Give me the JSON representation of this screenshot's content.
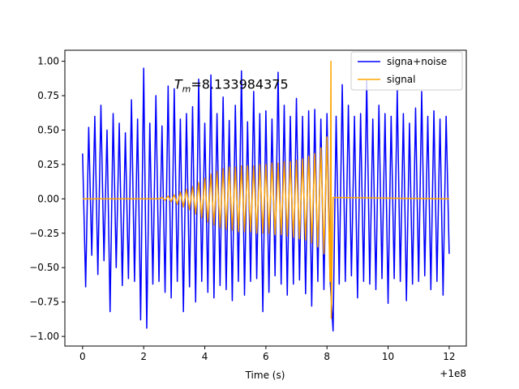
{
  "chart_data": {
    "type": "line",
    "xlabel": "Time (s)",
    "x_offset_label": "+1e8",
    "annotation": {
      "symbol": "T",
      "subscript": "m",
      "text": "=8.133984375",
      "x": 3.0,
      "y": 0.8
    },
    "legend": "upper right",
    "xlim": [
      -0.58,
      12.56
    ],
    "ylim": [
      -1.07,
      1.08
    ],
    "xticks": [
      0,
      2,
      4,
      6,
      8,
      10,
      12
    ],
    "yticks": [
      {
        "value": -1.0,
        "label": "−1.00"
      },
      {
        "value": -0.75,
        "label": "−0.75"
      },
      {
        "value": -0.5,
        "label": "−0.50"
      },
      {
        "value": -0.25,
        "label": "−0.25"
      },
      {
        "value": 0,
        "label": "0.00"
      },
      {
        "value": 0.25,
        "label": "0.25"
      },
      {
        "value": 0.5,
        "label": "0.50"
      },
      {
        "value": 0.75,
        "label": "0.75"
      },
      {
        "value": 1.0,
        "label": "1.00"
      }
    ],
    "series": [
      {
        "name": "signa+noise",
        "color": "#0000ff",
        "x": [
          0,
          0.1,
          0.2,
          0.3,
          0.4,
          0.5,
          0.6,
          0.7,
          0.8,
          0.9,
          1,
          1.1,
          1.2,
          1.3,
          1.4,
          1.5,
          1.6,
          1.7,
          1.8,
          1.9,
          2,
          2.1,
          2.2,
          2.3,
          2.4,
          2.5,
          2.6,
          2.7,
          2.8,
          2.9,
          3,
          3.1,
          3.2,
          3.3,
          3.4,
          3.5,
          3.6,
          3.7,
          3.8,
          3.9,
          4,
          4.1,
          4.2,
          4.3,
          4.4,
          4.5,
          4.6,
          4.7,
          4.8,
          4.9,
          5,
          5.1,
          5.2,
          5.3,
          5.4,
          5.5,
          5.6,
          5.7,
          5.8,
          5.9,
          6,
          6.1,
          6.2,
          6.3,
          6.4,
          6.5,
          6.6,
          6.7,
          6.8,
          6.9,
          7,
          7.1,
          7.2,
          7.3,
          7.4,
          7.5,
          7.6,
          7.7,
          7.8,
          7.9,
          8,
          8.1,
          8.2,
          8.3,
          8.4,
          8.5,
          8.6,
          8.7,
          8.8,
          8.9,
          9,
          9.1,
          9.2,
          9.3,
          9.4,
          9.5,
          9.6,
          9.7,
          9.8,
          9.9,
          10,
          10.1,
          10.2,
          10.3,
          10.4,
          10.5,
          10.6,
          10.7,
          10.8,
          10.9,
          11,
          11.1,
          11.2,
          11.3,
          11.4,
          11.5,
          11.6,
          11.7,
          11.8,
          11.9,
          12
        ],
        "values": [
          0.33,
          -0.64,
          0.52,
          -0.41,
          0.6,
          -0.55,
          0.68,
          -0.45,
          0.5,
          -0.82,
          0.62,
          -0.5,
          0.55,
          -0.63,
          0.48,
          -0.58,
          0.72,
          -0.6,
          0.58,
          -0.88,
          0.95,
          -0.94,
          0.55,
          -0.62,
          0.75,
          -0.6,
          0.53,
          -0.68,
          0.82,
          -0.72,
          0.8,
          -0.6,
          0.58,
          -0.82,
          0.62,
          -0.64,
          0.67,
          -0.75,
          0.87,
          -0.6,
          0.55,
          -0.68,
          0.9,
          -0.72,
          0.62,
          -0.63,
          0.74,
          -0.66,
          0.57,
          -0.74,
          0.68,
          -0.6,
          0.93,
          -0.7,
          0.56,
          -0.6,
          0.78,
          -0.58,
          0.62,
          -0.82,
          0.64,
          -0.68,
          0.58,
          -0.56,
          0.92,
          -0.62,
          0.68,
          -0.7,
          0.6,
          -0.62,
          0.73,
          -0.59,
          0.6,
          -0.69,
          0.64,
          -0.78,
          0.65,
          -0.6,
          0.58,
          -0.66,
          0.62,
          -0.58,
          -0.96,
          0.6,
          -0.62,
          0.83,
          -0.6,
          0.68,
          -0.56,
          0.6,
          -0.72,
          0.62,
          -0.6,
          0.86,
          -0.62,
          0.58,
          -0.66,
          0.68,
          -0.58,
          0.62,
          -0.76,
          0.6,
          -0.58,
          0.79,
          -0.6,
          0.62,
          -0.74,
          0.55,
          -0.62,
          0.66,
          -0.6,
          0.78,
          -0.56,
          0.6,
          -0.66,
          0.64,
          -0.6,
          0.58,
          -0.7,
          0.6,
          -0.4
        ]
      },
      {
        "name": "signal",
        "color": "#ffa500",
        "x": [
          0,
          2,
          2.5,
          2.6,
          2.7,
          2.8,
          2.9,
          3,
          3.1,
          3.2,
          3.3,
          3.4,
          3.5,
          3.6,
          3.7,
          3.8,
          3.9,
          4,
          4.1,
          4.2,
          4.3,
          4.4,
          4.5,
          4.6,
          4.7,
          4.8,
          4.9,
          5,
          5.1,
          5.2,
          5.3,
          5.4,
          5.5,
          5.6,
          5.7,
          5.8,
          5.9,
          6,
          6.1,
          6.2,
          6.3,
          6.4,
          6.5,
          6.6,
          6.7,
          6.8,
          6.9,
          7,
          7.1,
          7.2,
          7.3,
          7.4,
          7.5,
          7.6,
          7.7,
          7.8,
          7.9,
          8,
          8.1,
          8.13,
          8.14,
          8.2,
          12
        ],
        "values": [
          0,
          0,
          0,
          0.01,
          -0.01,
          0.02,
          -0.02,
          0.03,
          -0.04,
          0.05,
          -0.06,
          0.07,
          -0.08,
          0.09,
          -0.11,
          0.12,
          -0.14,
          0.15,
          -0.17,
          0.18,
          -0.19,
          0.2,
          -0.21,
          0.22,
          -0.22,
          0.23,
          -0.23,
          0.23,
          -0.24,
          0.24,
          -0.24,
          0.24,
          -0.24,
          0.24,
          -0.25,
          0.25,
          -0.25,
          0.25,
          -0.25,
          0.26,
          -0.26,
          0.26,
          -0.26,
          0.27,
          -0.27,
          0.27,
          -0.28,
          0.28,
          -0.29,
          0.29,
          -0.3,
          0.31,
          -0.32,
          0.33,
          -0.35,
          0.37,
          -0.4,
          0.45,
          -0.6,
          1.0,
          -0.87,
          0.01,
          0
        ]
      }
    ]
  }
}
